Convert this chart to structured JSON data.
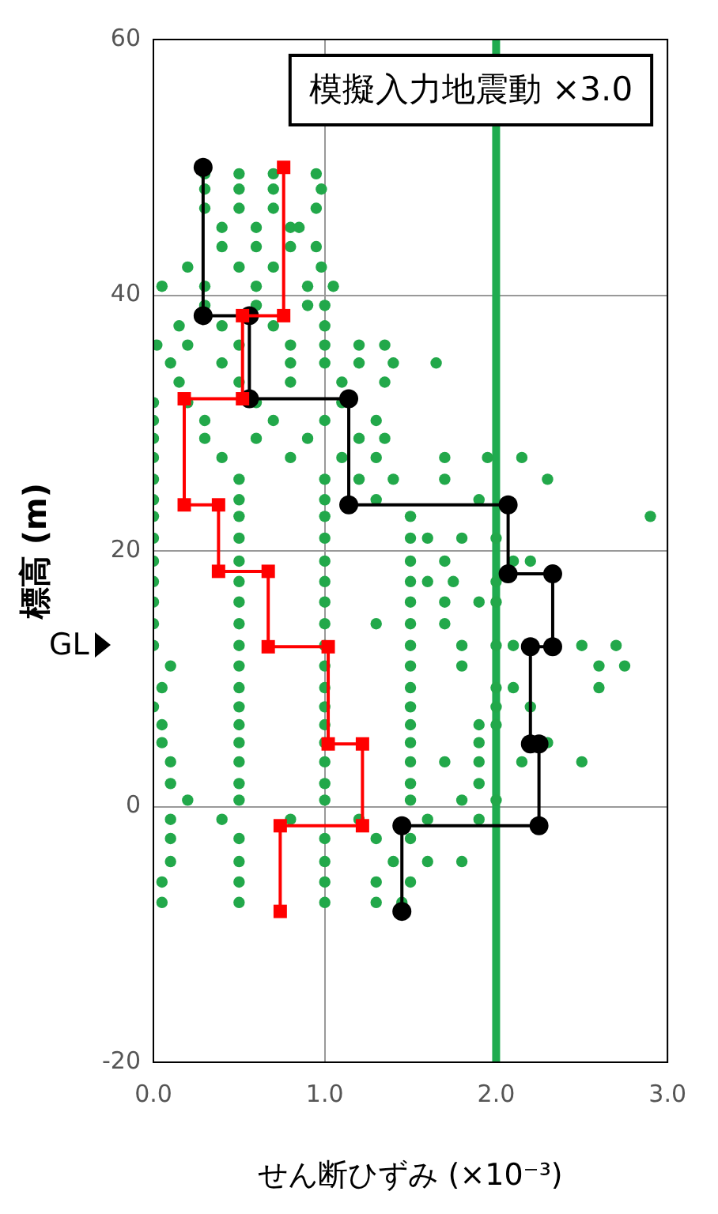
{
  "chart_data": {
    "type": "scatter",
    "title": "模擬入力地震動 ×3.0",
    "xlabel": "せん断ひずみ (×10⁻³)",
    "ylabel": "標高 (m)",
    "xlim": [
      0,
      3
    ],
    "xticks": [
      {
        "value": 0,
        "label": "0.0"
      },
      {
        "value": 1,
        "label": "1.0"
      },
      {
        "value": 2,
        "label": "2.0"
      },
      {
        "value": 3,
        "label": "3.0"
      }
    ],
    "ylim": [
      -20,
      60
    ],
    "yticks": [
      -20,
      0,
      20,
      40,
      60
    ],
    "grid": true,
    "legend": false,
    "ref_lines": [
      {
        "axis": "x",
        "value": 2.0,
        "color": "#1fab4f"
      }
    ],
    "annotations": [
      "GL"
    ],
    "series": [
      {
        "color": "#22a84a",
        "marker": "circle",
        "x": [
          0.3,
          0.5,
          0.7,
          0.95,
          0.3,
          0.5,
          0.7,
          0.98,
          0.3,
          0.5,
          0.7,
          0.95,
          0.4,
          0.6,
          0.8,
          0.85,
          0.4,
          0.6,
          0.8,
          0.95,
          0.2,
          0.5,
          0.7,
          0.98,
          0.05,
          0.3,
          0.6,
          0.9,
          1.05,
          0.3,
          0.6,
          0.9,
          1.0,
          0.15,
          0.4,
          0.7,
          1.0,
          0.02,
          0.2,
          0.5,
          0.8,
          1.0,
          1.2,
          1.35,
          0.1,
          0.4,
          0.8,
          1.0,
          1.2,
          1.4,
          1.65,
          0.15,
          0.5,
          0.8,
          1.1,
          1.35,
          0.0,
          0.2,
          0.6,
          1.1,
          0.0,
          0.3,
          0.7,
          1.0,
          1.3,
          0.0,
          0.3,
          0.6,
          0.9,
          1.2,
          1.35,
          0.0,
          0.4,
          0.8,
          1.1,
          1.3,
          1.7,
          1.95,
          2.15,
          0.0,
          0.5,
          1.0,
          1.2,
          1.4,
          1.7,
          2.3,
          0.0,
          0.5,
          1.0,
          1.3,
          1.9,
          0.0,
          0.5,
          1.0,
          1.5,
          2.9,
          0.0,
          0.5,
          1.0,
          1.5,
          1.6,
          1.8,
          2.0,
          0.0,
          0.5,
          1.0,
          1.5,
          1.7,
          2.1,
          2.2,
          0.0,
          0.5,
          1.0,
          1.5,
          1.6,
          1.75,
          2.0,
          0.0,
          0.5,
          1.0,
          1.5,
          1.7,
          1.9,
          2.0,
          0.0,
          0.5,
          1.0,
          1.3,
          1.5,
          1.7,
          0.0,
          0.5,
          1.0,
          1.5,
          1.8,
          2.0,
          2.1,
          2.5,
          2.7,
          0.1,
          0.5,
          1.0,
          1.5,
          1.8,
          2.6,
          2.75,
          0.05,
          0.5,
          1.0,
          1.5,
          2.0,
          2.1,
          2.6,
          0.0,
          0.5,
          1.0,
          1.5,
          2.0,
          2.2,
          0.05,
          0.5,
          1.0,
          1.5,
          1.9,
          2.0,
          0.05,
          0.5,
          1.0,
          1.5,
          1.9,
          2.3,
          0.1,
          0.5,
          1.0,
          1.5,
          1.7,
          1.9,
          2.15,
          2.5,
          0.1,
          0.5,
          1.0,
          1.5,
          1.9,
          0.2,
          0.5,
          1.0,
          1.5,
          1.8,
          2.0,
          0.1,
          0.4,
          0.8,
          1.2,
          1.6,
          1.9,
          0.1,
          0.5,
          1.0,
          1.3,
          1.5,
          0.1,
          0.5,
          1.0,
          1.4,
          1.6,
          1.8,
          0.05,
          0.5,
          1.0,
          1.3,
          1.5,
          0.05,
          0.5,
          1.0,
          1.3,
          1.45
        ],
        "values": [
          49.5,
          49.5,
          49.5,
          49.5,
          48.3,
          48.3,
          48.3,
          48.3,
          46.8,
          46.8,
          46.8,
          46.8,
          45.3,
          45.3,
          45.3,
          45.3,
          43.8,
          43.8,
          43.8,
          43.8,
          42.2,
          42.2,
          42.2,
          42.2,
          40.7,
          40.7,
          40.7,
          40.7,
          40.7,
          39.2,
          39.2,
          39.2,
          39.2,
          37.6,
          37.6,
          37.6,
          37.6,
          36.1,
          36.1,
          36.1,
          36.1,
          36.1,
          36.1,
          36.1,
          34.7,
          34.7,
          34.7,
          34.7,
          34.7,
          34.7,
          34.7,
          33.2,
          33.2,
          33.2,
          33.2,
          33.2,
          31.6,
          31.6,
          31.6,
          31.6,
          30.2,
          30.2,
          30.2,
          30.2,
          30.2,
          28.8,
          28.8,
          28.8,
          28.8,
          28.8,
          28.8,
          27.3,
          27.3,
          27.3,
          27.3,
          27.3,
          27.3,
          27.3,
          27.3,
          25.6,
          25.6,
          25.6,
          25.6,
          25.6,
          25.6,
          25.6,
          24.0,
          24.0,
          24.0,
          24.0,
          24.0,
          22.7,
          22.7,
          22.7,
          22.7,
          22.7,
          21.0,
          21.0,
          21.0,
          21.0,
          21.0,
          21.0,
          21.0,
          19.2,
          19.2,
          19.2,
          19.2,
          19.2,
          19.2,
          19.2,
          17.6,
          17.6,
          17.6,
          17.6,
          17.6,
          17.6,
          17.6,
          16.0,
          16.0,
          16.0,
          16.0,
          16.0,
          16.0,
          16.0,
          14.3,
          14.3,
          14.3,
          14.3,
          14.3,
          14.3,
          12.6,
          12.6,
          12.6,
          12.6,
          12.6,
          12.6,
          12.6,
          12.6,
          12.6,
          11.0,
          11.0,
          11.0,
          11.0,
          11.0,
          11.0,
          11.0,
          9.3,
          9.3,
          9.3,
          9.3,
          9.3,
          9.3,
          9.3,
          7.8,
          7.8,
          7.8,
          7.8,
          7.8,
          7.8,
          6.4,
          6.4,
          6.4,
          6.4,
          6.4,
          6.4,
          5.0,
          5.0,
          5.0,
          5.0,
          5.0,
          5.0,
          3.5,
          3.5,
          3.5,
          3.5,
          3.5,
          3.5,
          3.5,
          3.5,
          1.8,
          1.8,
          1.8,
          1.8,
          1.8,
          0.5,
          0.5,
          0.5,
          0.5,
          0.5,
          0.5,
          -1.0,
          -1.0,
          -1.0,
          -1.0,
          -1.0,
          -1.0,
          -2.5,
          -2.5,
          -2.5,
          -2.5,
          -2.5,
          -4.3,
          -4.3,
          -4.3,
          -4.3,
          -4.3,
          -4.3,
          -5.9,
          -5.9,
          -5.9,
          -5.9,
          -5.9,
          -7.5,
          -7.5,
          -7.5,
          -7.5,
          -7.5
        ]
      },
      {
        "type": "line",
        "color": "#000000",
        "marker": "circle",
        "line_style": "solid",
        "x": [
          0.29,
          0.29,
          0.56,
          0.56,
          1.14,
          1.14,
          2.07,
          2.07,
          2.33,
          2.33,
          2.2,
          2.2,
          2.25,
          2.25,
          1.45,
          1.45
        ],
        "values": [
          50.0,
          38.4,
          38.4,
          31.9,
          31.9,
          23.6,
          23.6,
          18.2,
          18.2,
          12.5,
          12.5,
          4.9,
          4.9,
          -1.5,
          -1.5,
          -8.2
        ]
      },
      {
        "type": "line",
        "color": "#ff0000",
        "marker": "square",
        "line_style": "solid",
        "x": [
          0.76,
          0.76,
          0.52,
          0.52,
          0.18,
          0.18,
          0.38,
          0.38,
          0.67,
          0.67,
          1.02,
          1.02,
          1.22,
          1.22,
          0.74,
          0.74
        ],
        "values": [
          50.0,
          38.4,
          38.4,
          31.9,
          31.9,
          23.6,
          23.6,
          18.4,
          18.4,
          12.5,
          12.5,
          4.9,
          4.9,
          -1.5,
          -1.5,
          -8.2
        ]
      }
    ]
  }
}
